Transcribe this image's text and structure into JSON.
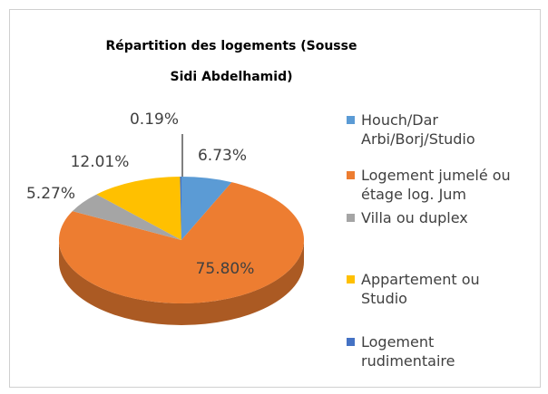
{
  "chart_data": {
    "type": "pie3d",
    "title": "Répartition des logements (Sousse Sidi Abdelhamid)",
    "categories": [
      "Houch/Dar Arbi/Borj/Studio",
      "Logement jumelé ou étage log. Jum",
      "Villa ou duplex",
      "Appartement ou Studio",
      "Logement rudimentaire"
    ],
    "values": [
      6.73,
      75.8,
      5.27,
      12.01,
      0.19
    ],
    "value_labels": [
      "6.73%",
      "75.80%",
      "5.27%",
      "12.01%",
      "0.19%"
    ],
    "colors": [
      "#5b9bd5",
      "#ed7d31",
      "#a5a5a5",
      "#ffc000",
      "#4472c4"
    ],
    "legend": "right"
  }
}
